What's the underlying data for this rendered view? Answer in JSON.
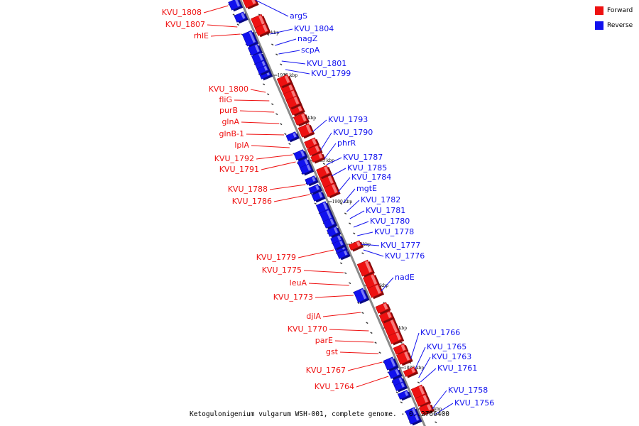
{
  "legend": {
    "items": [
      {
        "label": "Forward",
        "color": "#ee1111"
      },
      {
        "label": "Reverse",
        "color": "#1111ee"
      }
    ]
  },
  "caption": "Ketogulonigenium vulgarum WSH-001, complete genome. - 0..2766400",
  "colors": {
    "forward": "#ee1111",
    "reverse": "#1111ee",
    "backbone": "#8a8a8a"
  },
  "ticks": [
    "1920 kbp",
    "1915 kbp",
    "1910 kbp",
    "1905 kbp",
    "1900 kbp",
    "1895 kbp",
    "1890 kbp",
    "1885 kbp",
    "1880 kbp",
    "1875 kbp"
  ],
  "forward_genes": [
    "KVU_1808",
    "KVU_1807",
    "rhlE",
    "KVU_1800",
    "fliG",
    "purB",
    "glnA",
    "glnB-1",
    "lplA",
    "KVU_1792",
    "KVU_1791",
    "KVU_1788",
    "KVU_1786",
    "KVU_1779",
    "KVU_1775",
    "leuA",
    "KVU_1773",
    "djlA",
    "KVU_1770",
    "parE",
    "gst",
    "KVU_1767",
    "KVU_1764"
  ],
  "reverse_genes": [
    "argS",
    "KVU_1804",
    "nagZ",
    "scpA",
    "KVU_1801",
    "KVU_1799",
    "KVU_1793",
    "KVU_1790",
    "phrR",
    "KVU_1787",
    "KVU_1785",
    "KVU_1784",
    "mgtE",
    "KVU_1782",
    "KVU_1781",
    "KVU_1780",
    "KVU_1778",
    "KVU_1777",
    "KVU_1776",
    "nadE",
    "KVU_1766",
    "KVU_1765",
    "KVU_1763",
    "KVU_1761",
    "KVU_1758",
    "KVU_1756"
  ]
}
